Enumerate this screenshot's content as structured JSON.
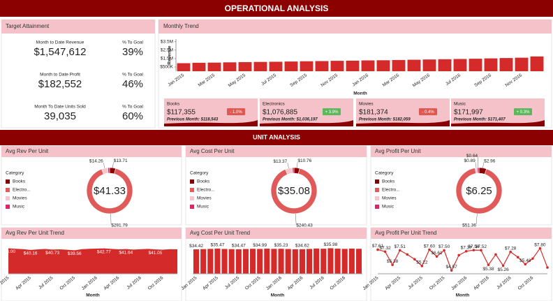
{
  "header": {
    "title": "OPERATIONAL ANALYSIS"
  },
  "target": {
    "title": "Target Attainment",
    "rows": [
      {
        "label": "Month to Date Revenue",
        "value": "$1,547,612",
        "goal_label": "% To Goal",
        "goal": "39%"
      },
      {
        "label": "Month to Date Profit",
        "value": "$182,552",
        "goal_label": "% To Goal",
        "goal": "46%"
      },
      {
        "label": "Month To Date Units Sold",
        "value": "39,035",
        "goal_label": "% To Goal",
        "goal": "60%"
      }
    ]
  },
  "cards": [
    {
      "name": "Books",
      "value": "$117,355",
      "change": "- 1.0%",
      "badge_color": "#e0584f",
      "previous": "Previous Month: $118,543"
    },
    {
      "name": "Electronics",
      "value": "$1,076,885",
      "change": "+ 3.9%",
      "badge_color": "#5cb85c",
      "previous": "Previous Month: $1,036,197"
    },
    {
      "name": "Movies",
      "value": "$181,374",
      "change": "- 0.4%",
      "badge_color": "#e0584f",
      "previous": "Previous Month: $182,059"
    },
    {
      "name": "Music",
      "value": "$171,997",
      "change": "+ 0.3%",
      "badge_color": "#5cb85c",
      "previous": "Previous Month: $171,407"
    }
  ],
  "unit_title": "UNIT ANALYSIS",
  "chart_data": [
    {
      "type": "bar",
      "title": "Monthly Trend",
      "y_label": "Revenue",
      "x_label": "Month",
      "color": "#d42a2a",
      "categories": [
        "Jan 2015",
        null,
        "Mar 2015",
        null,
        "May 2015",
        null,
        "Jul 2015",
        null,
        "Sep 2015",
        null,
        "Nov 2015",
        null,
        "Jan 2016",
        null,
        "Mar 2016",
        null,
        "May 2016",
        null,
        "Jul 2016",
        null,
        "Sep 2016",
        null,
        "Nov 2016",
        null
      ],
      "values": [
        950000,
        1000000,
        1020000,
        1050000,
        1080000,
        1100000,
        1120000,
        1150000,
        1180000,
        1200000,
        1230000,
        1250000,
        1280000,
        1300000,
        1330000,
        1360000,
        1390000,
        1420000,
        1450000,
        1480000,
        1520000,
        1560000,
        1600000,
        1750000
      ],
      "ylim": [
        0,
        3800000
      ],
      "yticks": [
        {
          "value": 500000,
          "label": "$500K"
        },
        {
          "value": 1500000,
          "label": "$1.5M"
        },
        {
          "value": 2500000,
          "label": "$2.5M"
        },
        {
          "value": 3500000,
          "label": "$3.5M"
        }
      ]
    },
    {
      "type": "donut",
      "title": "Avg Rev Per Unit",
      "legend_title": "Category",
      "categories": [
        "Books",
        "Electro...",
        "Movies",
        "Music"
      ],
      "colors": [
        "#8b0000",
        "#e05a5a",
        "#f7c6cc",
        "#e0245e"
      ],
      "values": [
        13.71,
        291.79,
        14.26,
        4
      ],
      "value_labels": [
        "$13.71",
        "$291.79",
        "$14.26",
        null
      ],
      "center_label": "$41.33"
    },
    {
      "type": "donut",
      "title": "Avg Cost Per Unit",
      "legend_title": "Category",
      "categories": [
        "Books",
        "Electro...",
        "Movies",
        "Music"
      ],
      "colors": [
        "#8b0000",
        "#e05a5a",
        "#f7c6cc",
        "#e0245e"
      ],
      "values": [
        10.76,
        240.43,
        13.37,
        3
      ],
      "value_labels": [
        "$10.76",
        "$240.43",
        "$13.37",
        null
      ],
      "center_label": "$35.08"
    },
    {
      "type": "donut",
      "title": "Avg Profit Per Unit",
      "legend_title": "Category",
      "categories": [
        "Books",
        "Electro...",
        "Movies",
        "Music"
      ],
      "colors": [
        "#8b0000",
        "#e05a5a",
        "#f7c6cc",
        "#e0245e"
      ],
      "values": [
        2.96,
        51.36,
        0.89,
        0.64
      ],
      "value_labels": [
        "$2.96",
        "$51.36",
        "$0.89",
        "$0.64"
      ],
      "center_label": "$6.25"
    },
    {
      "type": "area",
      "title": "Avg Rev Per Unit Trend",
      "x_label": "Month",
      "color": "#d42a2a",
      "categories": [
        "Jan 2015",
        null,
        null,
        "Apr 2015",
        null,
        null,
        "Jul 2015",
        null,
        null,
        "Oct 2015",
        null,
        null,
        "Jan 2016",
        null,
        null,
        "Apr 2016",
        null,
        null,
        "Jul 2016",
        null,
        null,
        "Oct 2016",
        null,
        null
      ],
      "values": [
        43.0,
        42.1,
        41.5,
        40.16,
        41.0,
        41.8,
        40.73,
        41.2,
        40.5,
        39.56,
        41.3,
        42.0,
        42.4,
        42.77,
        41.9,
        41.2,
        41.64,
        40.8,
        41.3,
        41.9,
        41.05,
        40.6,
        41.4,
        41.2
      ],
      "value_labels": [
        "$43.00",
        null,
        null,
        "$40.16",
        null,
        null,
        "$40.73",
        null,
        null,
        "$39.56",
        null,
        null,
        null,
        "$42.77",
        null,
        null,
        "$41.64",
        null,
        null,
        null,
        "$41.05",
        null,
        null,
        null
      ]
    },
    {
      "type": "bar",
      "title": "Avg Cost Per Unit Trend",
      "x_label": "Month",
      "color": "#d42a2a",
      "categories": [
        "Jan 2015",
        null,
        null,
        "Apr 2015",
        null,
        null,
        "Jul 2015",
        null,
        null,
        "Oct 2015",
        null,
        null,
        "Jan 2016",
        null,
        null,
        "Apr 2016",
        null,
        null,
        "Jul 2016",
        null,
        null,
        "Oct 2016",
        null,
        null
      ],
      "values": [
        34.42,
        34.8,
        35.1,
        35.47,
        35.0,
        34.7,
        34.47,
        34.9,
        35.2,
        34.99,
        35.4,
        35.1,
        35.23,
        34.9,
        34.5,
        34.62,
        35.0,
        35.6,
        35.3,
        35.98,
        35.4,
        35.1,
        35.5,
        35.2
      ],
      "value_labels": [
        "$34.42",
        null,
        null,
        "$35.47",
        null,
        null,
        "$34.47",
        null,
        null,
        "$34.99",
        null,
        null,
        "$35.23",
        null,
        null,
        "$34.62",
        null,
        null,
        null,
        "$35.98",
        null,
        null,
        null,
        null
      ]
    },
    {
      "type": "line",
      "title": "Avg Profit Per Unit Trend",
      "x_label": "Month",
      "color": "#d42a2a",
      "categories": [
        "Jan 2015",
        null,
        null,
        "Apr 2015",
        null,
        null,
        "Jul 2015",
        null,
        null,
        "Oct 2015",
        null,
        null,
        "Jan 2016",
        null,
        null,
        "Apr 2016",
        null,
        null,
        "Jul 2016",
        null,
        null,
        "Oct 2016",
        null,
        null
      ],
      "values": [
        7.61,
        7.32,
        5.38,
        7.51,
        6.9,
        6.2,
        5.22,
        7.6,
        6.61,
        7.5,
        4.57,
        6.8,
        7.37,
        7.54,
        7.52,
        5.38,
        6.9,
        5.26,
        7.28,
        6.5,
        5.48,
        6.3,
        7.8,
        5.0
      ],
      "value_labels": [
        "$7.61",
        "$7.32",
        "$5.38",
        "$7.51",
        null,
        null,
        "$5.22",
        "$7.60",
        "$6.61",
        "$7.50",
        "$4.57",
        null,
        "$7.37",
        "$7.54",
        "$7.52",
        "$5.38",
        null,
        "$5.26",
        "$7.28",
        null,
        "$5.48",
        null,
        "$7.80",
        null
      ]
    }
  ]
}
